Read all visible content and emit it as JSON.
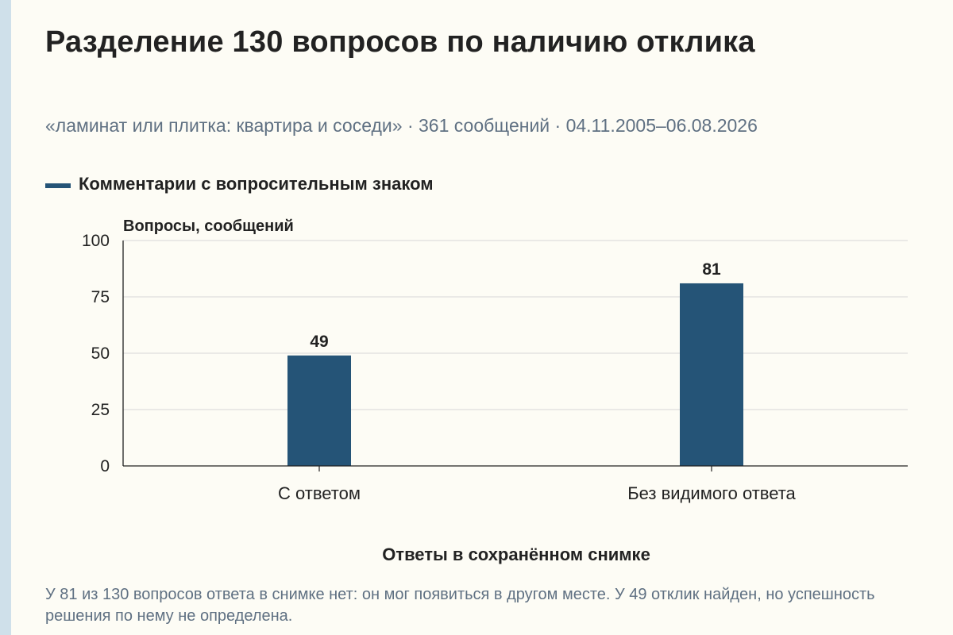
{
  "page": {
    "title": "Разделение 130 вопросов по наличию отклика",
    "subtitle": "«ламинат или плитка: квартира и соседи» · 361 сообщений · 04.11.2005–06.08.2026",
    "note": "У 81 из 130 вопросов ответа в снимке нет: он мог появиться в другом месте. У 49 отклик найден, но успешность решения по нему не определена."
  },
  "colors": {
    "bar": "#255477",
    "background": "#fdfcf5",
    "grid": "#d6d6d6",
    "muted_text": "#5f7082",
    "side_strip": "#cfe0ea"
  },
  "chart_data": {
    "type": "bar",
    "categories": [
      "С ответом",
      "Без видимого ответа"
    ],
    "series": [
      {
        "name": "Комментарии с вопросительным знаком",
        "values": [
          49,
          81
        ]
      }
    ],
    "data_labels": [
      "49",
      "81"
    ],
    "xlabel": "Ответы в сохранённом снимке",
    "ylabel": "Вопросы, сообщений",
    "ylim": [
      0,
      100
    ],
    "yticks": [
      0,
      25,
      50,
      75,
      100
    ],
    "ytick_labels": [
      "0",
      "25",
      "50",
      "75",
      "100"
    ],
    "grid": true,
    "legend_position": "top-left"
  }
}
